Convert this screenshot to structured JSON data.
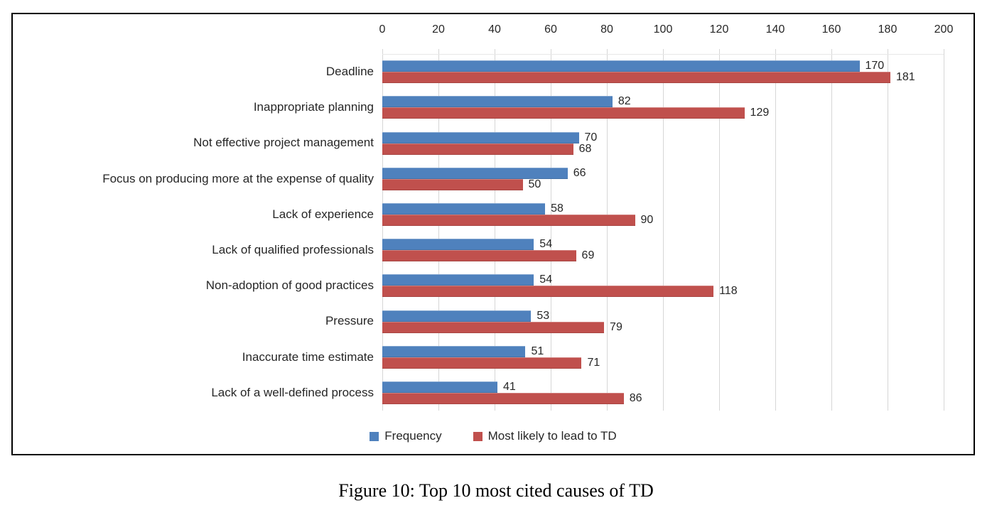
{
  "figure": {
    "caption": "Figure 10: Top 10 most cited causes of TD"
  },
  "chart_data": {
    "type": "bar",
    "orientation": "horizontal",
    "title": "",
    "categories": [
      "Deadline",
      "Inappropriate planning",
      "Not effective project management",
      "Focus on producing more at the expense of quality",
      "Lack of experience",
      "Lack of qualified professionals",
      "Non-adoption of good practices",
      "Pressure",
      "Inaccurate time estimate",
      "Lack of a well-defined process"
    ],
    "series": [
      {
        "name": "Frequency",
        "color": "#4F81BD",
        "values": [
          170,
          82,
          70,
          66,
          58,
          54,
          54,
          53,
          51,
          41
        ]
      },
      {
        "name": "Most likely to lead to TD",
        "color": "#C0504D",
        "values": [
          181,
          129,
          68,
          50,
          90,
          69,
          118,
          79,
          71,
          86
        ]
      }
    ],
    "xlim": [
      0,
      200
    ],
    "x_ticks": [
      "0",
      "20",
      "40",
      "60",
      "80",
      "100",
      "120",
      "140",
      "160",
      "180",
      "200"
    ],
    "axis_position": "top",
    "grid": true,
    "gridline_color": "#d6d6d6",
    "data_labels": true,
    "legend_position": "bottom",
    "text_color": "#262626"
  }
}
